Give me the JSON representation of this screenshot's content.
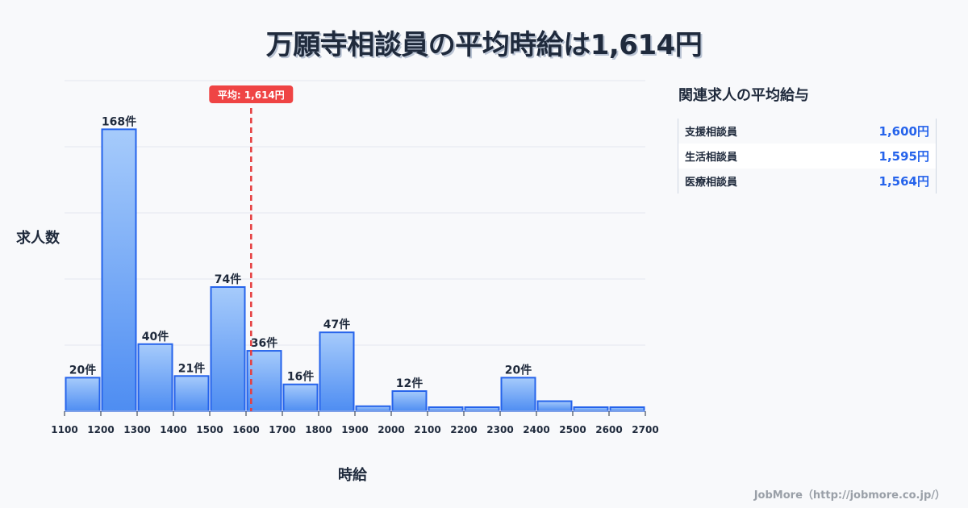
{
  "title": "万願寺相談員の平均時給は1,614円",
  "chart_data": {
    "type": "bar",
    "title": "万願寺相談員の平均時給は1,614円",
    "xlabel": "時給",
    "ylabel": "求人数",
    "bin_edges": [
      1100,
      1200,
      1300,
      1400,
      1500,
      1600,
      1700,
      1800,
      1900,
      2000,
      2100,
      2200,
      2300,
      2400,
      2500,
      2600,
      2700
    ],
    "categories": [
      "1100-1200",
      "1200-1300",
      "1300-1400",
      "1400-1500",
      "1500-1600",
      "1600-1700",
      "1700-1800",
      "1800-1900",
      "1900-2000",
      "2000-2100",
      "2100-2200",
      "2200-2300",
      "2300-2400",
      "2400-2500",
      "2500-2600",
      "2600-2700"
    ],
    "values": [
      20,
      168,
      40,
      21,
      74,
      36,
      16,
      47,
      3,
      12,
      2,
      2,
      20,
      6,
      2,
      2
    ],
    "labels": [
      "20件",
      "168件",
      "40件",
      "21件",
      "74件",
      "36件",
      "16件",
      "47件",
      "",
      "12件",
      "",
      "",
      "20件",
      "",
      "",
      ""
    ],
    "x_ticks": [
      "1100",
      "1200",
      "1300",
      "1400",
      "1500",
      "1600",
      "1700",
      "1800",
      "1900",
      "2000",
      "2100",
      "2200",
      "2300",
      "2400",
      "2500",
      "2600",
      "2700"
    ],
    "ylim": [
      0,
      197
    ],
    "grid": true,
    "mean_line": {
      "value": 1614,
      "label": "平均: 1,614円",
      "color": "#e53e3e"
    },
    "bar_color_top": "#a6cbfb",
    "bar_color_bottom": "#4e8df2",
    "bar_border": "#2563eb"
  },
  "sidebar": {
    "title": "関連求人の平均給与",
    "items": [
      {
        "name": "支援相談員",
        "value": "1,600円"
      },
      {
        "name": "生活相談員",
        "value": "1,595円"
      },
      {
        "name": "医療相談員",
        "value": "1,564円"
      }
    ]
  },
  "footer": "JobMore（http://jobmore.co.jp/）"
}
